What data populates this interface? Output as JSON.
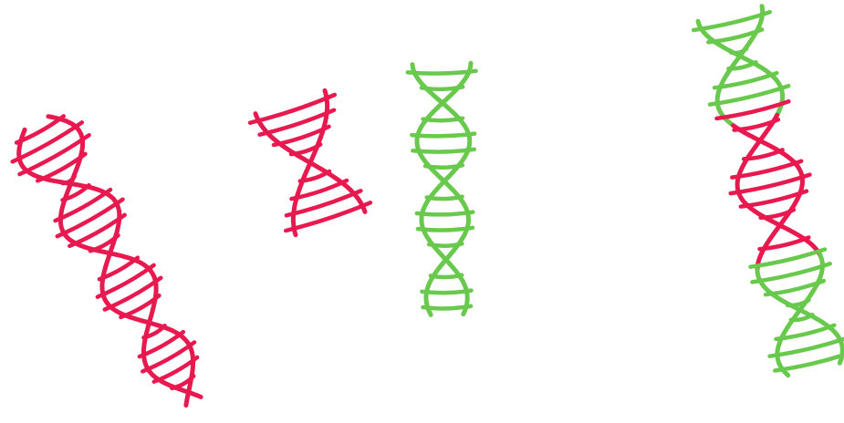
{
  "colors": {
    "background": "#ffffff",
    "red": "#e8194f",
    "green": "#68c94d"
  },
  "helices": [
    {
      "name": "long-red-helix",
      "color": "red"
    },
    {
      "name": "short-red-helix",
      "color": "red"
    },
    {
      "name": "green-helix",
      "color": "green"
    },
    {
      "name": "mixed-red-green-helix",
      "color": "red-green"
    }
  ]
}
